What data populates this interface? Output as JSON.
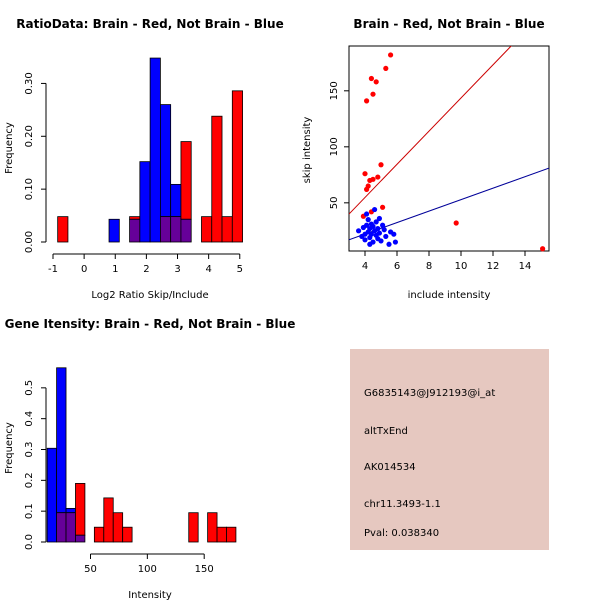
{
  "colors": {
    "red": "#ff0000",
    "blue": "#0000ff",
    "purple": "#660099",
    "line_red": "#cc0000",
    "line_blue": "#000099",
    "info_bg": "#e6c8c0",
    "pval": "#aa0000"
  },
  "chart_data": [
    {
      "type": "bar",
      "subtype": "overlaid-histogram",
      "title": "RatioData: Brain - Red, Not Brain - Blue",
      "xlabel": "Log2 Ratio Skip/Include",
      "ylabel": "Frequency",
      "xlim": [
        -1.0,
        5.2
      ],
      "ylim": [
        0,
        0.35
      ],
      "xticks": [
        -1,
        0,
        1,
        2,
        3,
        4,
        5
      ],
      "yticks": [
        0.0,
        0.1,
        0.2,
        0.3
      ],
      "ytick_labels": [
        "0.00",
        "0.10",
        "0.20",
        "0.30"
      ],
      "bin_edges": [
        -0.85,
        -0.52,
        -0.19,
        0.14,
        0.47,
        0.8,
        1.13,
        1.46,
        1.79,
        2.12,
        2.45,
        2.78,
        3.11,
        3.44,
        3.77,
        4.1,
        4.43,
        4.76,
        5.09
      ],
      "series": [
        {
          "name": "Brain",
          "color": "red",
          "values": [
            0.048,
            0,
            0,
            0,
            0,
            0,
            0,
            0.048,
            0,
            0,
            0.048,
            0.048,
            0.19,
            0,
            0.048,
            0.238,
            0.048,
            0.286
          ]
        },
        {
          "name": "Not Brain",
          "color": "blue",
          "values": [
            0,
            0,
            0,
            0,
            0,
            0.043,
            0,
            0.043,
            0.152,
            0.348,
            0.26,
            0.109,
            0.043,
            0,
            0,
            0,
            0,
            0
          ]
        }
      ]
    },
    {
      "type": "scatter",
      "title": "Brain - Red, Not Brain - Blue",
      "xlabel": "include intensity",
      "ylabel": "skip intensity",
      "xlim": [
        3.0,
        15.5
      ],
      "ylim": [
        7,
        190
      ],
      "xticks": [
        4,
        6,
        8,
        10,
        12,
        14
      ],
      "yticks": [
        50,
        100,
        150
      ],
      "series": [
        {
          "name": "Brain",
          "color": "red",
          "points": [
            [
              4.0,
              76
            ],
            [
              4.2,
              65
            ],
            [
              4.1,
              62
            ],
            [
              4.3,
              70
            ],
            [
              4.5,
              71
            ],
            [
              4.8,
              73
            ],
            [
              5.0,
              84
            ],
            [
              3.9,
              38
            ],
            [
              4.4,
              42
            ],
            [
              5.1,
              46
            ],
            [
              4.1,
              141
            ],
            [
              4.5,
              147
            ],
            [
              4.4,
              161
            ],
            [
              4.7,
              158
            ],
            [
              5.3,
              170
            ],
            [
              5.6,
              182
            ],
            [
              9.7,
              32
            ],
            [
              15.1,
              9
            ]
          ],
          "fit_line": [
            [
              3.0,
              40
            ],
            [
              15.5,
              225
            ]
          ]
        },
        {
          "name": "Not Brain",
          "color": "blue",
          "points": [
            [
              3.6,
              25
            ],
            [
              3.8,
              20
            ],
            [
              3.9,
              28
            ],
            [
              4.0,
              22
            ],
            [
              4.0,
              17
            ],
            [
              4.1,
              30
            ],
            [
              4.2,
              24
            ],
            [
              4.2,
              35
            ],
            [
              4.3,
              19
            ],
            [
              4.3,
              27
            ],
            [
              4.4,
              31
            ],
            [
              4.4,
              22
            ],
            [
              4.5,
              29
            ],
            [
              4.5,
              15
            ],
            [
              4.6,
              44
            ],
            [
              4.6,
              25
            ],
            [
              4.7,
              21
            ],
            [
              4.7,
              33
            ],
            [
              4.8,
              18
            ],
            [
              4.8,
              27
            ],
            [
              4.9,
              36
            ],
            [
              4.9,
              23
            ],
            [
              5.0,
              16
            ],
            [
              5.1,
              30
            ],
            [
              5.2,
              26
            ],
            [
              5.3,
              20
            ],
            [
              5.5,
              13
            ],
            [
              5.6,
              24
            ],
            [
              5.8,
              22
            ],
            [
              5.9,
              15
            ],
            [
              4.1,
              40
            ],
            [
              4.3,
              13
            ]
          ],
          "fit_line": [
            [
              3.0,
              17
            ],
            [
              15.5,
              81
            ]
          ]
        }
      ]
    },
    {
      "type": "bar",
      "subtype": "overlaid-histogram",
      "title": "Gene Itensity: Brain - Red, Not Brain - Blue",
      "xlabel": "Intensity",
      "ylabel": "Frequency",
      "xlim": [
        10,
        185
      ],
      "ylim": [
        0,
        0.6
      ],
      "xticks": [
        50,
        100,
        150
      ],
      "yticks": [
        0.0,
        0.1,
        0.2,
        0.3,
        0.4,
        0.5
      ],
      "ytick_labels": [
        "0.0",
        "0.1",
        "0.2",
        "0.3",
        "0.4",
        "0.5"
      ],
      "bin_edges": [
        11.9,
        20.2,
        28.5,
        36.8,
        45.1,
        53.4,
        61.7,
        70.0,
        78.3,
        86.6,
        94.9,
        103.2,
        111.5,
        119.8,
        128.1,
        136.4,
        144.7,
        153.0,
        161.3,
        169.6,
        177.9
      ],
      "series": [
        {
          "name": "Brain",
          "color": "red",
          "values": [
            0,
            0.095,
            0.095,
            0.19,
            0,
            0.048,
            0.143,
            0.095,
            0.048,
            0,
            0,
            0,
            0,
            0,
            0,
            0.095,
            0,
            0.095,
            0.048,
            0.048
          ]
        },
        {
          "name": "Not Brain",
          "color": "blue",
          "values": [
            0.304,
            0.565,
            0.109,
            0.022,
            0,
            0,
            0,
            0,
            0,
            0,
            0,
            0,
            0,
            0,
            0,
            0,
            0,
            0,
            0,
            0
          ]
        }
      ]
    }
  ],
  "info": {
    "probe_id": "G6835143@J912193@i_at",
    "event_type": "altTxEnd",
    "accession": "AK014534",
    "location": "chr11.3493-1.1",
    "pval": "Pval: 0.038340"
  }
}
